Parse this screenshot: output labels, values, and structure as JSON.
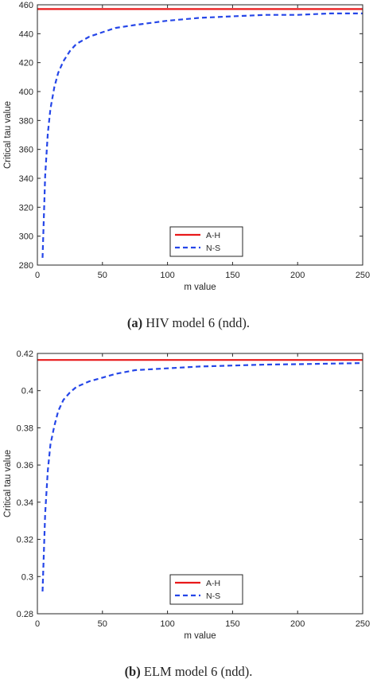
{
  "captions": [
    {
      "label": "(a)",
      "text": " HIV model 6 (ndd)."
    },
    {
      "label": "(b)",
      "text": " ELM model 6 (ndd)."
    }
  ],
  "colors": {
    "ah": "#e8191a",
    "ns": "#2546e8",
    "axis": "#262626"
  },
  "chart_data": [
    {
      "type": "line",
      "xlabel": "m value",
      "ylabel": "Critical tau value",
      "xlim": [
        0,
        250
      ],
      "ylim": [
        280,
        460
      ],
      "xticks": [
        0,
        50,
        100,
        150,
        200,
        250
      ],
      "xtick_labels": [
        "0",
        "50",
        "100",
        "150",
        "200",
        "250"
      ],
      "yticks": [
        280,
        300,
        320,
        340,
        360,
        380,
        400,
        420,
        440,
        460
      ],
      "ytick_labels": [
        "280",
        "300",
        "320",
        "340",
        "360",
        "380",
        "400",
        "420",
        "440",
        "460"
      ],
      "grid": false,
      "legend_position": "bottom-right",
      "series": [
        {
          "name": "A-H",
          "style": "solid",
          "color": "#e8191a",
          "x": [
            0,
            250
          ],
          "y": [
            457,
            457
          ]
        },
        {
          "name": "N-S",
          "style": "dashed",
          "color": "#2546e8",
          "x": [
            4,
            6,
            8,
            10,
            13,
            16,
            20,
            25,
            30,
            40,
            50,
            60,
            75,
            100,
            125,
            150,
            175,
            200,
            225,
            250
          ],
          "y": [
            285,
            342,
            371,
            388,
            403,
            413,
            421,
            428,
            433,
            438,
            441,
            444,
            446,
            449,
            451,
            452,
            453,
            453,
            454,
            454
          ]
        }
      ]
    },
    {
      "type": "line",
      "xlabel": "m value",
      "ylabel": "Critical tau value",
      "xlim": [
        0,
        250
      ],
      "ylim": [
        0.28,
        0.42
      ],
      "xticks": [
        0,
        50,
        100,
        150,
        200,
        250
      ],
      "xtick_labels": [
        "0",
        "50",
        "100",
        "150",
        "200",
        "250"
      ],
      "yticks": [
        0.28,
        0.3,
        0.32,
        0.34,
        0.36,
        0.38,
        0.4,
        0.42
      ],
      "ytick_labels": [
        "0.28",
        "0.3",
        "0.32",
        "0.34",
        "0.36",
        "0.38",
        "0.4",
        "0.42"
      ],
      "grid": false,
      "legend_position": "bottom-right",
      "series": [
        {
          "name": "A-H",
          "style": "solid",
          "color": "#e8191a",
          "x": [
            0,
            250
          ],
          "y": [
            0.4165,
            0.4165
          ]
        },
        {
          "name": "N-S",
          "style": "dashed",
          "color": "#2546e8",
          "x": [
            4,
            6,
            8,
            10,
            13,
            16,
            20,
            25,
            30,
            40,
            50,
            60,
            75,
            100,
            125,
            150,
            175,
            200,
            225,
            250
          ],
          "y": [
            0.292,
            0.334,
            0.357,
            0.371,
            0.381,
            0.389,
            0.395,
            0.399,
            0.402,
            0.405,
            0.407,
            0.409,
            0.411,
            0.412,
            0.413,
            0.4135,
            0.414,
            0.4142,
            0.4145,
            0.4148
          ]
        }
      ]
    }
  ]
}
